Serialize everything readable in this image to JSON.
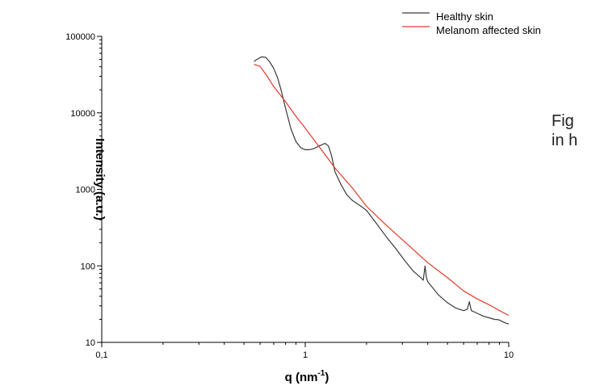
{
  "caption": {
    "line1": "Fig",
    "line2": "in h"
  },
  "chart_data": {
    "type": "line",
    "title": "",
    "xlabel": {
      "main": "q (nm",
      "sup": "-1",
      "end": ")"
    },
    "ylabel": "Intensity (a.u.)",
    "xscale": "log",
    "yscale": "log",
    "xlim": [
      0.1,
      10
    ],
    "ylim": [
      10,
      100000
    ],
    "x_ticks": [
      0.1,
      1,
      10
    ],
    "x_tick_labels": [
      "0,1",
      "1",
      "10"
    ],
    "y_ticks": [
      10,
      100,
      1000,
      10000,
      100000
    ],
    "y_tick_labels": [
      "10",
      "100",
      "1000",
      "10000",
      "100000"
    ],
    "grid": false,
    "legend_position": "top-right",
    "series": [
      {
        "name": "Healthy skin",
        "color": "#3a3a3a",
        "x": [
          0.56,
          0.58,
          0.61,
          0.64,
          0.67,
          0.7,
          0.73,
          0.76,
          0.8,
          0.85,
          0.9,
          0.95,
          1.0,
          1.05,
          1.1,
          1.15,
          1.2,
          1.25,
          1.3,
          1.35,
          1.4,
          1.5,
          1.6,
          1.7,
          1.8,
          1.9,
          2.0,
          2.2,
          2.5,
          2.8,
          3.1,
          3.4,
          3.7,
          3.8,
          3.88,
          3.94,
          4.0,
          4.5,
          5.0,
          5.5,
          6.0,
          6.25,
          6.4,
          6.55,
          7.0,
          7.5,
          8.0,
          8.5,
          8.9,
          9.3,
          9.7,
          10.0
        ],
        "y": [
          47000,
          50000,
          54000,
          53000,
          46000,
          38000,
          29000,
          20000,
          11500,
          6200,
          4200,
          3500,
          3300,
          3300,
          3400,
          3600,
          3800,
          4000,
          3700,
          2700,
          1700,
          1150,
          850,
          720,
          650,
          590,
          530,
          380,
          240,
          165,
          115,
          85,
          70,
          65,
          100,
          70,
          62,
          42,
          33,
          28,
          26,
          27,
          34,
          26,
          24,
          22,
          21,
          20,
          19.8,
          18.7,
          17.8,
          17.5
        ]
      },
      {
        "name": "Melanom affected skin",
        "color": "#e03a2a",
        "x": [
          0.56,
          0.6,
          0.65,
          0.7,
          0.8,
          0.9,
          1.0,
          1.2,
          1.4,
          1.7,
          2.0,
          2.5,
          3.0,
          4.0,
          5.0,
          6.0,
          7.0,
          8.0,
          9.0,
          10.0
        ],
        "y": [
          43000,
          40500,
          30000,
          22000,
          14000,
          9000,
          6300,
          3300,
          1900,
          1050,
          600,
          340,
          220,
          110,
          70,
          47,
          37,
          31,
          26,
          22.5
        ]
      }
    ]
  }
}
